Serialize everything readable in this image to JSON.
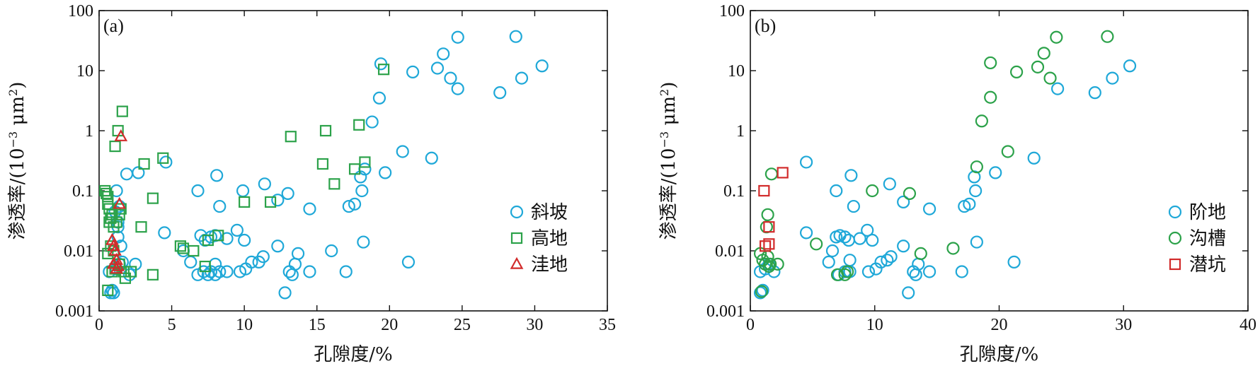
{
  "chart_data": [
    {
      "type": "scatter",
      "panel_label": "(a)",
      "xlabel": "孔隙度/%",
      "ylabel_main": "渗透率/(10",
      "ylabel_exp": "−3",
      "ylabel_unit": " μm",
      "ylabel_unit_exp": "2",
      "ylabel_close": ")",
      "xlim": [
        0,
        35
      ],
      "ylim": [
        0.001,
        100
      ],
      "yscale": "log",
      "xticks": [
        0,
        5,
        10,
        15,
        20,
        25,
        30,
        35
      ],
      "xtick_labels": [
        "0",
        "5",
        "10",
        "15",
        "20",
        "25",
        "30",
        "35"
      ],
      "yticks": [
        0.001,
        0.01,
        0.1,
        1,
        10,
        100
      ],
      "ytick_labels": [
        "0.001",
        "0.01",
        "0.1",
        "1",
        "10",
        "100"
      ],
      "legend_position": "right",
      "series": [
        {
          "name": "斜坡",
          "marker": "circle",
          "color": "#1fa8d8",
          "points": [
            [
              0.8,
              0.002
            ],
            [
              1.0,
              0.002
            ],
            [
              0.9,
              0.0022
            ],
            [
              0.7,
              0.0045
            ],
            [
              1.2,
              0.005
            ],
            [
              1.4,
              0.006
            ],
            [
              1.6,
              0.0065
            ],
            [
              2.1,
              0.004
            ],
            [
              2.5,
              0.006
            ],
            [
              1.5,
              0.012
            ],
            [
              1.3,
              0.017
            ],
            [
              1.3,
              0.025
            ],
            [
              1.3,
              0.03
            ],
            [
              1.1,
              0.045
            ],
            [
              1.4,
              0.055
            ],
            [
              1.2,
              0.1
            ],
            [
              1.9,
              0.19
            ],
            [
              2.7,
              0.2
            ],
            [
              4.6,
              0.3
            ],
            [
              4.5,
              0.02
            ],
            [
              5.8,
              0.01
            ],
            [
              6.3,
              0.0065
            ],
            [
              6.8,
              0.004
            ],
            [
              7.2,
              0.0045
            ],
            [
              7.5,
              0.004
            ],
            [
              7.7,
              0.0045
            ],
            [
              8.0,
              0.004
            ],
            [
              8.3,
              0.0045
            ],
            [
              8.8,
              0.0045
            ],
            [
              9.7,
              0.0045
            ],
            [
              10.1,
              0.005
            ],
            [
              7.0,
              0.018
            ],
            [
              7.3,
              0.015
            ],
            [
              7.7,
              0.017
            ],
            [
              8.0,
              0.018
            ],
            [
              8.8,
              0.016
            ],
            [
              9.5,
              0.022
            ],
            [
              10.0,
              0.015
            ],
            [
              8.0,
              0.006
            ],
            [
              8.1,
              0.18
            ],
            [
              6.8,
              0.1
            ],
            [
              8.3,
              0.055
            ],
            [
              9.9,
              0.1
            ],
            [
              11.4,
              0.13
            ],
            [
              12.3,
              0.07
            ],
            [
              13.0,
              0.09
            ],
            [
              14.5,
              0.05
            ],
            [
              10.5,
              0.0065
            ],
            [
              11.0,
              0.0065
            ],
            [
              11.3,
              0.008
            ],
            [
              12.3,
              0.012
            ],
            [
              12.8,
              0.002
            ],
            [
              13.1,
              0.0045
            ],
            [
              13.3,
              0.004
            ],
            [
              13.5,
              0.006
            ],
            [
              13.7,
              0.009
            ],
            [
              14.5,
              0.0045
            ],
            [
              16.0,
              0.01
            ],
            [
              17.0,
              0.0045
            ],
            [
              17.2,
              0.055
            ],
            [
              17.6,
              0.06
            ],
            [
              18.0,
              0.17
            ],
            [
              18.1,
              0.1
            ],
            [
              18.3,
              0.23
            ],
            [
              18.2,
              0.014
            ],
            [
              18.8,
              1.4
            ],
            [
              19.3,
              3.5
            ],
            [
              19.4,
              13
            ],
            [
              19.7,
              0.2
            ],
            [
              20.9,
              0.45
            ],
            [
              21.3,
              0.0065
            ],
            [
              21.6,
              9.5
            ],
            [
              22.9,
              0.35
            ],
            [
              23.3,
              11
            ],
            [
              23.7,
              19
            ],
            [
              24.2,
              7.5
            ],
            [
              24.7,
              5
            ],
            [
              24.7,
              36
            ],
            [
              27.6,
              4.3
            ],
            [
              28.7,
              37
            ],
            [
              29.1,
              7.5
            ],
            [
              30.5,
              12
            ]
          ]
        },
        {
          "name": "高地",
          "marker": "square",
          "color": "#2ca24a",
          "points": [
            [
              0.4,
              0.1
            ],
            [
              0.5,
              0.09
            ],
            [
              0.6,
              0.08
            ],
            [
              0.6,
              0.06
            ],
            [
              0.7,
              0.05
            ],
            [
              0.7,
              0.03
            ],
            [
              0.8,
              0.035
            ],
            [
              0.9,
              0.04
            ],
            [
              1.0,
              0.025
            ],
            [
              1.2,
              0.03
            ],
            [
              1.4,
              0.04
            ],
            [
              1.5,
              0.05
            ],
            [
              0.6,
              0.009
            ],
            [
              0.8,
              0.012
            ],
            [
              1.0,
              0.01
            ],
            [
              0.6,
              0.0022
            ],
            [
              0.9,
              0.0045
            ],
            [
              1.1,
              0.005
            ],
            [
              1.4,
              0.006
            ],
            [
              1.7,
              0.0045
            ],
            [
              1.8,
              0.0035
            ],
            [
              2.2,
              0.0045
            ],
            [
              1.1,
              0.55
            ],
            [
              1.3,
              1.0
            ],
            [
              1.6,
              2.1
            ],
            [
              3.1,
              0.28
            ],
            [
              2.9,
              0.025
            ],
            [
              3.7,
              0.075
            ],
            [
              3.7,
              0.004
            ],
            [
              4.4,
              0.35
            ],
            [
              5.6,
              0.012
            ],
            [
              5.8,
              0.011
            ],
            [
              6.5,
              0.01
            ],
            [
              7.3,
              0.0055
            ],
            [
              7.5,
              0.015
            ],
            [
              8.2,
              0.018
            ],
            [
              10.0,
              0.065
            ],
            [
              11.8,
              0.065
            ],
            [
              13.2,
              0.8
            ],
            [
              15.4,
              0.28
            ],
            [
              15.6,
              1.0
            ],
            [
              16.2,
              0.13
            ],
            [
              17.6,
              0.23
            ],
            [
              17.9,
              1.25
            ],
            [
              18.3,
              0.3
            ],
            [
              19.6,
              10.5
            ]
          ]
        },
        {
          "name": "洼地",
          "marker": "triangle",
          "color": "#d22b2b",
          "points": [
            [
              0.9,
              0.015
            ],
            [
              1.0,
              0.012
            ],
            [
              1.1,
              0.01
            ],
            [
              1.2,
              0.007
            ],
            [
              1.0,
              0.006
            ],
            [
              1.3,
              0.0055
            ],
            [
              1.2,
              0.005
            ],
            [
              1.4,
              0.06
            ],
            [
              1.5,
              0.8
            ]
          ]
        }
      ]
    },
    {
      "type": "scatter",
      "panel_label": "(b)",
      "xlabel": "孔隙度/%",
      "ylabel_main": "渗透率/(10",
      "ylabel_exp": "−3",
      "ylabel_unit": " μm",
      "ylabel_unit_exp": "2",
      "ylabel_close": ")",
      "xlim": [
        0,
        40
      ],
      "ylim": [
        0.001,
        100
      ],
      "yscale": "log",
      "xticks": [
        0,
        10,
        20,
        30,
        40
      ],
      "xtick_labels": [
        "0",
        "10",
        "20",
        "30",
        "40"
      ],
      "yticks": [
        0.001,
        0.01,
        0.1,
        1,
        10,
        100
      ],
      "ytick_labels": [
        "0.001",
        "0.01",
        "0.1",
        "1",
        "10",
        "100"
      ],
      "legend_position": "right",
      "series": [
        {
          "name": "阶地",
          "marker": "circle",
          "color": "#1fa8d8",
          "points": [
            [
              0.8,
              0.002
            ],
            [
              1.0,
              0.0022
            ],
            [
              0.8,
              0.0045
            ],
            [
              1.2,
              0.005
            ],
            [
              1.5,
              0.006
            ],
            [
              1.9,
              0.0045
            ],
            [
              4.5,
              0.3
            ],
            [
              4.5,
              0.02
            ],
            [
              6.3,
              0.0065
            ],
            [
              6.6,
              0.01
            ],
            [
              6.9,
              0.1
            ],
            [
              6.9,
              0.017
            ],
            [
              7.2,
              0.018
            ],
            [
              7.6,
              0.017
            ],
            [
              7.9,
              0.015
            ],
            [
              7.1,
              0.004
            ],
            [
              7.6,
              0.0045
            ],
            [
              8.0,
              0.0045
            ],
            [
              8.1,
              0.18
            ],
            [
              8.3,
              0.055
            ],
            [
              8.0,
              0.007
            ],
            [
              8.8,
              0.016
            ],
            [
              9.4,
              0.022
            ],
            [
              9.8,
              0.015
            ],
            [
              9.5,
              0.0045
            ],
            [
              10.1,
              0.005
            ],
            [
              10.5,
              0.0065
            ],
            [
              11.0,
              0.007
            ],
            [
              11.3,
              0.008
            ],
            [
              11.2,
              0.13
            ],
            [
              12.3,
              0.065
            ],
            [
              12.3,
              0.012
            ],
            [
              12.7,
              0.002
            ],
            [
              13.1,
              0.0045
            ],
            [
              13.3,
              0.004
            ],
            [
              13.5,
              0.006
            ],
            [
              14.4,
              0.05
            ],
            [
              14.4,
              0.0045
            ],
            [
              17.0,
              0.0045
            ],
            [
              17.2,
              0.055
            ],
            [
              17.6,
              0.06
            ],
            [
              18.0,
              0.17
            ],
            [
              18.1,
              0.1
            ],
            [
              18.2,
              0.014
            ],
            [
              19.7,
              0.2
            ],
            [
              21.2,
              0.0065
            ],
            [
              22.8,
              0.35
            ],
            [
              24.7,
              5
            ],
            [
              27.7,
              4.3
            ],
            [
              29.1,
              7.5
            ],
            [
              30.5,
              12
            ]
          ]
        },
        {
          "name": "沟槽",
          "marker": "circle",
          "color": "#2ca24a",
          "points": [
            [
              0.8,
              0.009
            ],
            [
              1.0,
              0.007
            ],
            [
              1.2,
              0.006
            ],
            [
              1.4,
              0.008
            ],
            [
              1.5,
              0.0055
            ],
            [
              1.6,
              0.006
            ],
            [
              2.2,
              0.006
            ],
            [
              1.4,
              0.04
            ],
            [
              1.3,
              0.025
            ],
            [
              1.7,
              0.19
            ],
            [
              0.9,
              0.0021
            ],
            [
              5.3,
              0.013
            ],
            [
              7.0,
              0.004
            ],
            [
              7.6,
              0.004
            ],
            [
              7.8,
              0.0045
            ],
            [
              9.8,
              0.1
            ],
            [
              12.8,
              0.09
            ],
            [
              13.7,
              0.009
            ],
            [
              16.3,
              0.011
            ],
            [
              18.2,
              0.25
            ],
            [
              18.6,
              1.45
            ],
            [
              19.3,
              3.6
            ],
            [
              19.3,
              13.5
            ],
            [
              20.7,
              0.45
            ],
            [
              21.4,
              9.5
            ],
            [
              23.1,
              11.5
            ],
            [
              23.6,
              19.5
            ],
            [
              24.1,
              7.5
            ],
            [
              24.6,
              36
            ],
            [
              28.7,
              37
            ]
          ]
        },
        {
          "name": "潜坑",
          "marker": "square",
          "color": "#d22b2b",
          "points": [
            [
              1.1,
              0.1
            ],
            [
              1.2,
              0.012
            ],
            [
              1.5,
              0.013
            ],
            [
              1.5,
              0.025
            ],
            [
              2.6,
              0.2
            ]
          ]
        }
      ]
    }
  ]
}
